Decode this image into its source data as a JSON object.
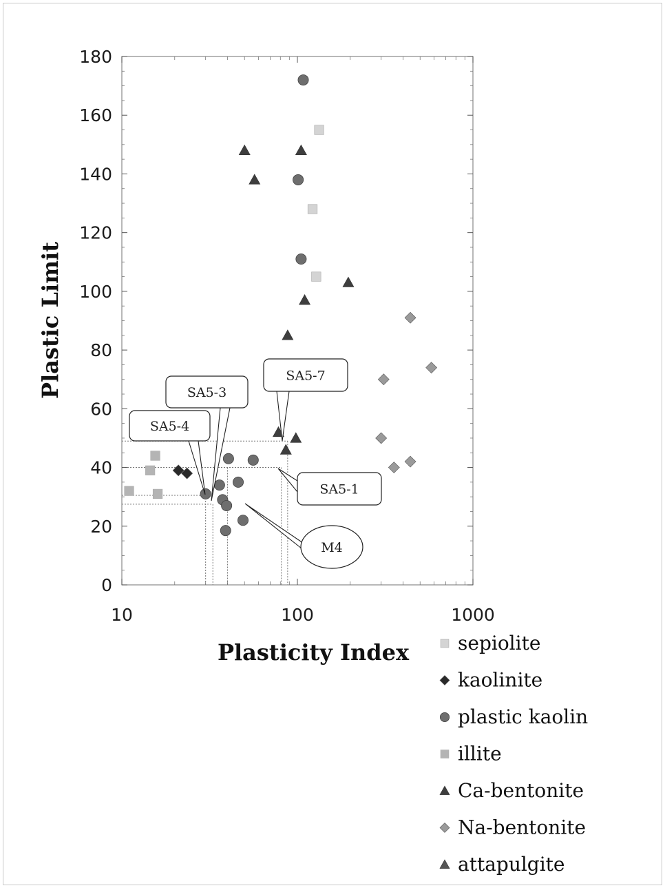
{
  "chart_data": {
    "type": "scatter",
    "xlabel": "Plasticity Index",
    "ylabel": "Plastic Limit",
    "xscale": "log",
    "xlim": [
      10,
      1000
    ],
    "ylim": [
      0,
      180
    ],
    "x_ticks": [
      "10",
      "100",
      "1000"
    ],
    "y_ticks": [
      "0",
      "20",
      "40",
      "60",
      "80",
      "100",
      "120",
      "140",
      "160",
      "180"
    ],
    "grid": false,
    "legend_position": "bottom-right",
    "series": [
      {
        "name": "sepiolite",
        "marker": "square",
        "color": "#d4d4d4",
        "points": [
          [
            133,
            155
          ],
          [
            122,
            128
          ],
          [
            128,
            105
          ]
        ]
      },
      {
        "name": "kaolinite",
        "marker": "diamond",
        "color": "#2a2a2a",
        "points": [
          [
            21,
            39
          ],
          [
            23.5,
            38
          ]
        ]
      },
      {
        "name": "plastic kaolin",
        "marker": "circle",
        "color": "#6e6e6e",
        "points": [
          [
            108,
            172
          ],
          [
            101,
            138
          ],
          [
            105,
            111
          ],
          [
            30,
            31
          ],
          [
            36,
            34
          ],
          [
            37.5,
            29
          ],
          [
            39.5,
            27
          ],
          [
            40.5,
            43
          ],
          [
            39,
            18.5
          ],
          [
            46,
            35
          ],
          [
            49,
            22
          ],
          [
            56,
            42.5
          ]
        ]
      },
      {
        "name": "illite",
        "marker": "square",
        "color": "#b4b4b4",
        "points": [
          [
            15.5,
            44
          ],
          [
            16,
            31
          ],
          [
            14.5,
            39
          ],
          [
            11,
            32
          ]
        ]
      },
      {
        "name": "Ca-bentonite",
        "marker": "triangle",
        "color": "#3e3e3e",
        "points": [
          [
            50,
            148
          ],
          [
            57,
            138
          ],
          [
            105,
            148
          ],
          [
            110,
            97
          ],
          [
            195,
            103
          ],
          [
            88,
            85
          ],
          [
            78,
            52
          ],
          [
            98,
            50
          ],
          [
            86,
            46
          ]
        ]
      },
      {
        "name": "Na-bentonite",
        "marker": "diamond",
        "color": "#9a9a9a",
        "points": [
          [
            440,
            91
          ],
          [
            580,
            74
          ],
          [
            310,
            70
          ],
          [
            300,
            50
          ],
          [
            355,
            40
          ],
          [
            440,
            42
          ]
        ]
      },
      {
        "name": "attapulgite",
        "marker": "triangle",
        "color": "#555555",
        "points": []
      }
    ],
    "annotations": [
      {
        "label": "SA5-3",
        "x": 33,
        "y": 30
      },
      {
        "label": "SA5-4",
        "x": 30,
        "y": 31
      },
      {
        "label": "SA5-7",
        "x": 81,
        "y": 49
      },
      {
        "label": "SA5-1",
        "x": 80,
        "y": 40
      },
      {
        "label": "M4",
        "x": 40,
        "y": 28
      }
    ]
  },
  "legend_items": [
    "sepiolite",
    "kaolinite",
    "plastic kaolin",
    "illite",
    "Ca-bentonite",
    "Na-bentonite",
    "attapulgite"
  ]
}
